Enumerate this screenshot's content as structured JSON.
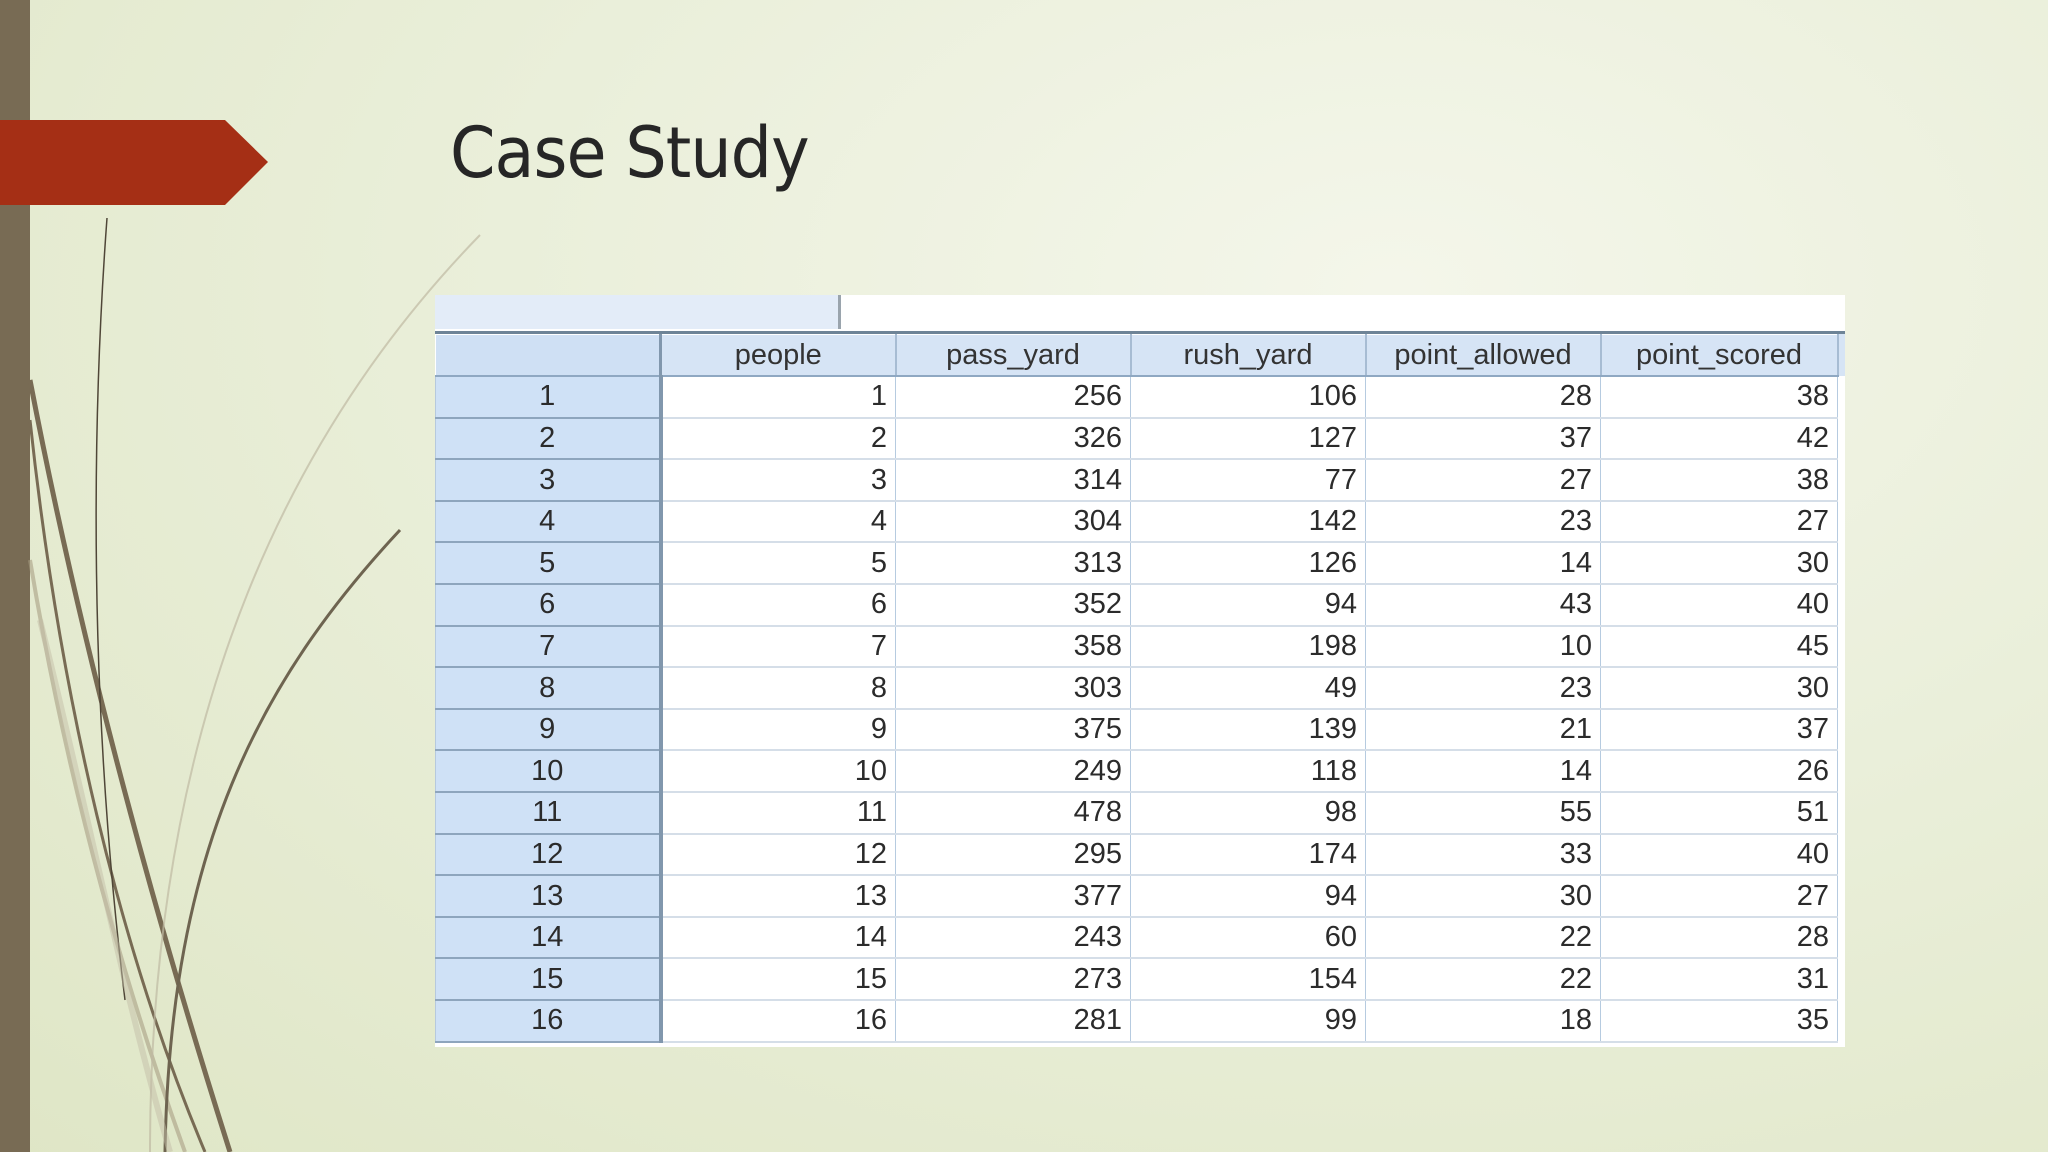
{
  "slide": {
    "title": "Case Study",
    "colors": {
      "accent_tab": "#a52f15",
      "left_bar": "#786b54",
      "background": "#eaefda",
      "title_text": "#262626",
      "grid_header": "#d6e4f5"
    }
  },
  "data_view": {
    "columns": [
      "people",
      "pass_yard",
      "rush_yard",
      "point_allowed",
      "point_scored"
    ],
    "rows": [
      {
        "row": "1",
        "values": [
          "1",
          "256",
          "106",
          "28",
          "38"
        ]
      },
      {
        "row": "2",
        "values": [
          "2",
          "326",
          "127",
          "37",
          "42"
        ]
      },
      {
        "row": "3",
        "values": [
          "3",
          "314",
          "77",
          "27",
          "38"
        ]
      },
      {
        "row": "4",
        "values": [
          "4",
          "304",
          "142",
          "23",
          "27"
        ]
      },
      {
        "row": "5",
        "values": [
          "5",
          "313",
          "126",
          "14",
          "30"
        ]
      },
      {
        "row": "6",
        "values": [
          "6",
          "352",
          "94",
          "43",
          "40"
        ]
      },
      {
        "row": "7",
        "values": [
          "7",
          "358",
          "198",
          "10",
          "45"
        ]
      },
      {
        "row": "8",
        "values": [
          "8",
          "303",
          "49",
          "23",
          "30"
        ]
      },
      {
        "row": "9",
        "values": [
          "9",
          "375",
          "139",
          "21",
          "37"
        ]
      },
      {
        "row": "10",
        "values": [
          "10",
          "249",
          "118",
          "14",
          "26"
        ]
      },
      {
        "row": "11",
        "values": [
          "11",
          "478",
          "98",
          "55",
          "51"
        ]
      },
      {
        "row": "12",
        "values": [
          "12",
          "295",
          "174",
          "33",
          "40"
        ]
      },
      {
        "row": "13",
        "values": [
          "13",
          "377",
          "94",
          "30",
          "27"
        ]
      },
      {
        "row": "14",
        "values": [
          "14",
          "243",
          "60",
          "22",
          "28"
        ]
      },
      {
        "row": "15",
        "values": [
          "15",
          "273",
          "154",
          "22",
          "31"
        ]
      },
      {
        "row": "16",
        "values": [
          "16",
          "281",
          "99",
          "18",
          "35"
        ]
      }
    ]
  }
}
